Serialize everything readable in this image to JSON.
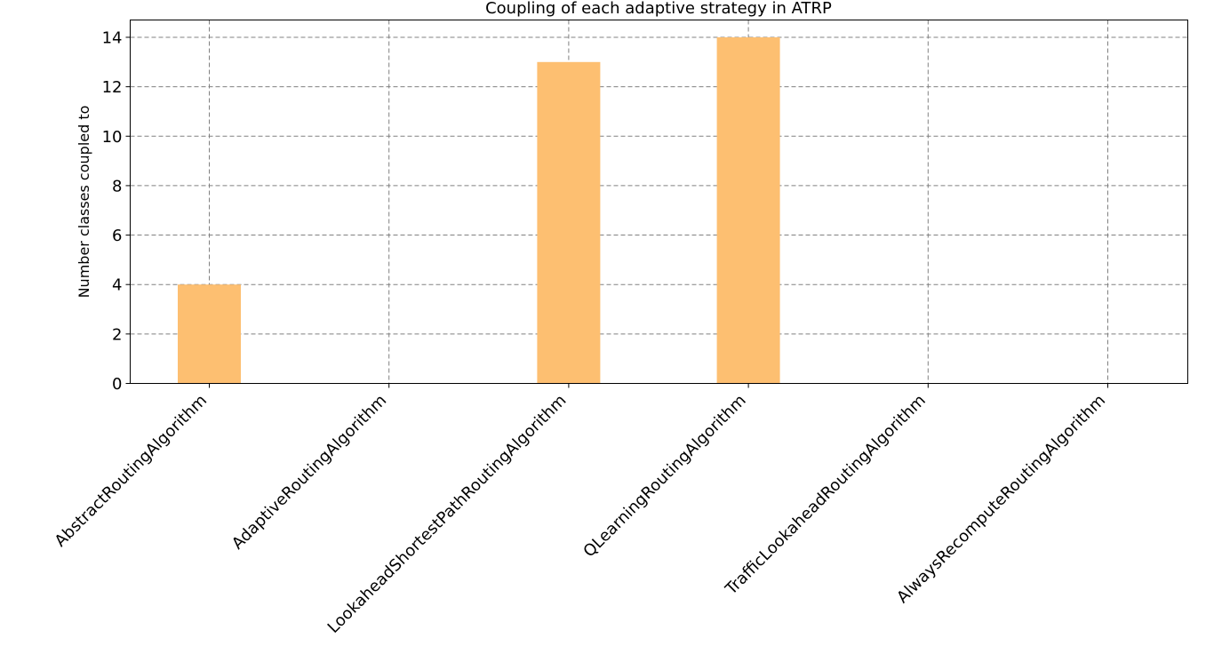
{
  "chart_data": {
    "type": "bar",
    "title": "Coupling of each adaptive strategy in ATRP",
    "xlabel": "",
    "ylabel": "Number classes coupled to",
    "categories": [
      "AbstractRoutingAlgorithm",
      "AdaptiveRoutingAlgorithm",
      "LookaheadShortestPathRoutingAlgorithm",
      "QLearningRoutingAlgorithm",
      "TrafficLookaheadRoutingAlgorithm",
      "AlwaysRecomputeRoutingAlgorithm"
    ],
    "values": [
      4,
      0,
      13,
      14,
      0,
      0
    ],
    "ylim": [
      0,
      14.7
    ],
    "yticks": [
      0,
      2,
      4,
      6,
      8,
      10,
      12,
      14
    ],
    "grid": true,
    "bar_color": "#fdbf71"
  }
}
